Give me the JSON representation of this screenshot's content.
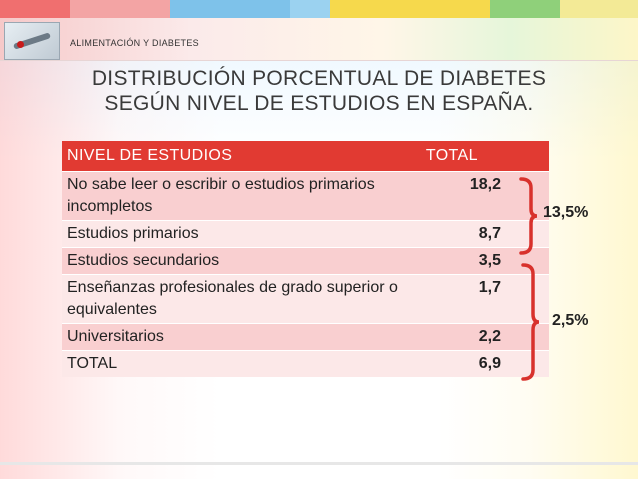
{
  "header": {
    "subject": "ALIMENTACIÓN  Y  DIABETES"
  },
  "title": {
    "line1": "DISTRIBUCIÓN  PORCENTUAL  DE  DIABETES",
    "line2": "SEGÚN  NIVEL  DE  ESTUDIOS EN  ESPAÑA."
  },
  "table": {
    "columns": [
      "NIVEL  DE  ESTUDIOS",
      "TOTAL"
    ],
    "rows": [
      {
        "nivel": "No sabe leer o escribir o estudios primarios incompletos",
        "total": "18,2"
      },
      {
        "nivel": "Estudios primarios",
        "total": "8,7"
      },
      {
        "nivel": "Estudios secundarios",
        "total": "3,5"
      },
      {
        "nivel": "Enseñanzas profesionales de grado superior o equivalentes",
        "total": "1,7"
      },
      {
        "nivel": "Universitarios",
        "total": "2,2"
      },
      {
        "nivel": "TOTAL",
        "total": "6,9"
      }
    ]
  },
  "groups": {
    "upper_label": "13,5%",
    "lower_label": "2,5%"
  },
  "colors": {
    "header_red": "#e13a32",
    "row_pink": "#f9cfd0",
    "row_light": "#fce8e8",
    "brace_red": "#d8312c"
  }
}
